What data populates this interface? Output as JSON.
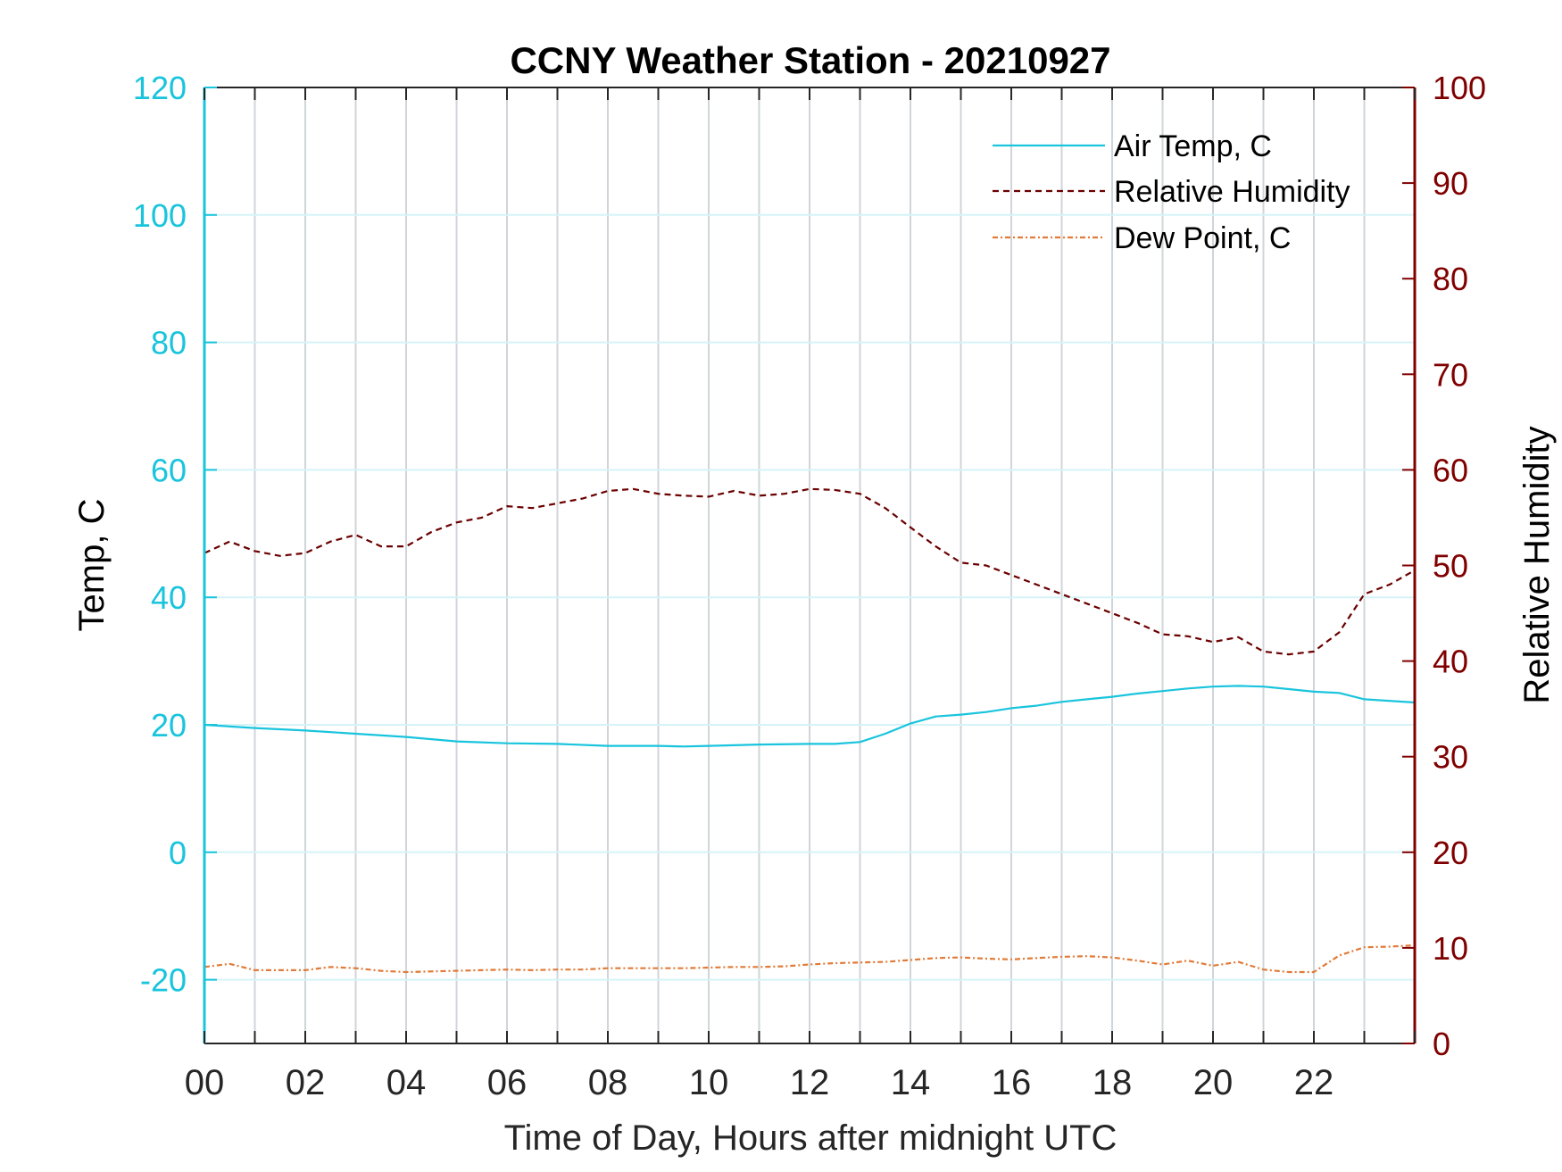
{
  "chart_data": {
    "type": "line",
    "title": "CCNY Weather Station - 20210927",
    "xlabel": "Time of Day, Hours after midnight UTC",
    "ylabel_left": "Temp, C",
    "ylabel_right": "Relative Humidity",
    "xlim": [
      0,
      24
    ],
    "ylim_left": [
      -30,
      120
    ],
    "ylim_right": [
      0,
      100
    ],
    "x_tick_labels": [
      "00",
      "02",
      "04",
      "06",
      "08",
      "10",
      "12",
      "14",
      "16",
      "18",
      "20",
      "22"
    ],
    "y_left_ticks": [
      -20,
      0,
      20,
      40,
      60,
      80,
      100,
      120
    ],
    "y_right_ticks": [
      0,
      10,
      20,
      30,
      40,
      50,
      60,
      70,
      80,
      90,
      100
    ],
    "grid": true,
    "legend_position": "top-right",
    "colors": {
      "left_axis": "#19c4dd",
      "right_axis": "#800000",
      "temp": "#19c4dd",
      "rh": "#6b0000",
      "dew": "#e07b39",
      "grid_x": "#d0d5da",
      "grid_y": "#d6f3f8"
    },
    "series": [
      {
        "name": "Air Temp, C",
        "axis": "left",
        "style": "solid",
        "x": [
          0,
          1,
          2,
          3,
          4,
          5,
          6,
          7,
          8,
          9,
          9.5,
          10,
          11,
          12,
          12.5,
          13,
          13.5,
          14,
          14.5,
          15,
          15.5,
          16,
          16.5,
          17,
          17.5,
          18,
          18.5,
          19,
          19.5,
          20,
          20.5,
          21,
          21.5,
          22,
          22.5,
          23,
          24
        ],
        "y": [
          20,
          19.5,
          19.1,
          18.6,
          18.1,
          17.4,
          17.1,
          17.0,
          16.7,
          16.7,
          16.6,
          16.7,
          16.9,
          17.0,
          17.0,
          17.3,
          18.6,
          20.2,
          21.3,
          21.6,
          22.0,
          22.6,
          23.0,
          23.6,
          24.0,
          24.4,
          24.9,
          25.3,
          25.7,
          26.0,
          26.1,
          26.0,
          25.6,
          25.2,
          25.0,
          24.0,
          23.5
        ]
      },
      {
        "name": "Relative Humidity",
        "axis": "right",
        "style": "dashed",
        "x": [
          0,
          0.5,
          1,
          1.5,
          2,
          2.5,
          3,
          3.5,
          4,
          4.5,
          5,
          5.5,
          6,
          6.5,
          7,
          7.5,
          8,
          8.5,
          9,
          9.5,
          10,
          10.5,
          11,
          11.5,
          12,
          12.5,
          13,
          13.5,
          14,
          14.5,
          15,
          15.5,
          16,
          16.5,
          17,
          17.5,
          18,
          18.5,
          19,
          19.5,
          20,
          20.5,
          21,
          21.5,
          22,
          22.5,
          23,
          23.5,
          24
        ],
        "y": [
          51.3,
          52.5,
          51.5,
          51.0,
          51.3,
          52.5,
          53.2,
          52.0,
          52.0,
          53.5,
          54.5,
          55.0,
          56.2,
          56.0,
          56.5,
          57.0,
          57.8,
          58.0,
          57.5,
          57.3,
          57.2,
          57.8,
          57.3,
          57.5,
          58.0,
          57.9,
          57.5,
          56.0,
          54.0,
          52.0,
          50.3,
          50.0,
          49.0,
          48.0,
          47.0,
          46.0,
          45.0,
          44.0,
          42.8,
          42.6,
          42.0,
          42.5,
          41.0,
          40.7,
          41.0,
          43.0,
          47.0,
          48.0,
          49.5
        ]
      },
      {
        "name": "Dew Point, C",
        "axis": "left",
        "style": "dash-dot",
        "x": [
          0,
          0.5,
          1,
          1.5,
          2,
          2.5,
          3,
          3.5,
          4,
          4.5,
          5,
          5.5,
          6,
          6.5,
          7,
          7.5,
          8,
          8.5,
          9,
          9.5,
          10,
          10.5,
          11,
          11.5,
          12,
          12.5,
          13,
          13.5,
          14,
          14.5,
          15,
          15.5,
          16,
          16.5,
          17,
          17.5,
          18,
          18.5,
          19,
          19.5,
          20,
          20.5,
          21,
          21.5,
          22,
          22.5,
          23,
          23.5,
          24
        ],
        "y": [
          -18.0,
          -17.5,
          -18.5,
          -18.5,
          -18.5,
          -18.0,
          -18.2,
          -18.6,
          -18.8,
          -18.7,
          -18.6,
          -18.5,
          -18.4,
          -18.5,
          -18.4,
          -18.4,
          -18.2,
          -18.2,
          -18.2,
          -18.2,
          -18.1,
          -18.0,
          -18.0,
          -17.9,
          -17.6,
          -17.4,
          -17.3,
          -17.2,
          -16.9,
          -16.6,
          -16.5,
          -16.7,
          -16.8,
          -16.6,
          -16.4,
          -16.3,
          -16.5,
          -17.0,
          -17.6,
          -17.0,
          -17.8,
          -17.2,
          -18.4,
          -18.8,
          -18.8,
          -16.2,
          -14.9,
          -14.8,
          -14.6
        ]
      }
    ]
  }
}
